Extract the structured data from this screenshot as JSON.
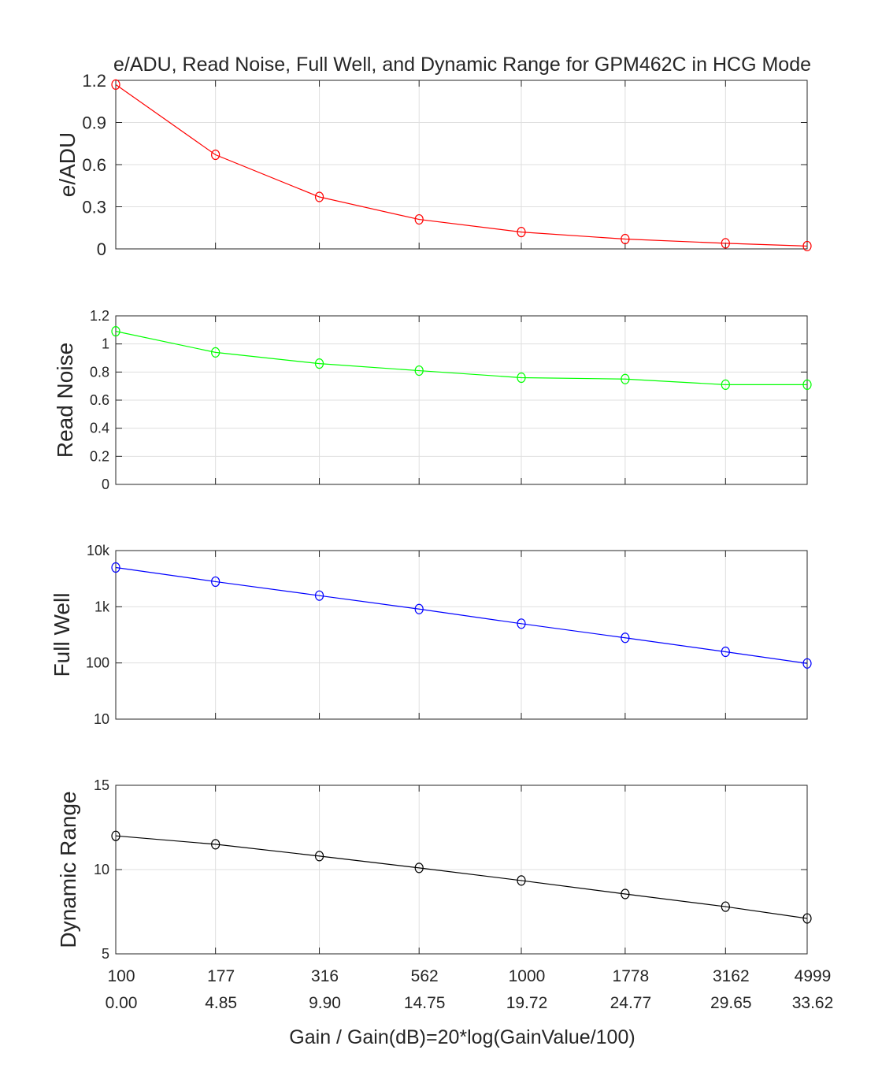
{
  "chart_data": {
    "type": "line",
    "title": "e/ADU, Read Noise, Full Well, and Dynamic Range for GPM462C in HCG Mode",
    "xlabel": "Gain / Gain(dB)=20*log(GainValue/100)",
    "x_gain_labels": [
      "100",
      "177",
      "316",
      "562",
      "1000",
      "1778",
      "3162",
      "4999"
    ],
    "x_db_labels": [
      "0.00",
      "4.85",
      "9.90",
      "14.75",
      "19.72",
      "24.77",
      "29.65",
      "33.62"
    ],
    "x_db": [
      0,
      4.85,
      9.9,
      14.75,
      19.72,
      24.77,
      29.65,
      33.62
    ],
    "grid": true,
    "panels": [
      {
        "ylabel": "e/ADU",
        "scale": "linear",
        "ylim": [
          0,
          1.2
        ],
        "yticks": [
          0,
          0.3,
          0.6,
          0.9,
          1.2
        ],
        "ytick_labels": [
          "0",
          "0.3",
          "0.6",
          "0.9",
          "1.2"
        ],
        "color": "#ff0000",
        "values": [
          1.17,
          0.67,
          0.37,
          0.21,
          0.12,
          0.07,
          0.04,
          0.02
        ]
      },
      {
        "ylabel": "Read Noise",
        "scale": "linear",
        "ylim": [
          0,
          1.2
        ],
        "yticks": [
          0,
          0.2,
          0.4,
          0.6,
          0.8,
          1,
          1.2
        ],
        "ytick_labels": [
          "0",
          "0.2",
          "0.4",
          "0.6",
          "0.8",
          "1",
          "1.2"
        ],
        "color": "#00ff00",
        "values": [
          1.09,
          0.94,
          0.86,
          0.81,
          0.76,
          0.75,
          0.71,
          0.71
        ]
      },
      {
        "ylabel": "Full Well",
        "scale": "log",
        "ylim": [
          10,
          10000
        ],
        "yticks": [
          10,
          100,
          1000,
          10000
        ],
        "ytick_labels": [
          "10",
          "100",
          "1k",
          "10k"
        ],
        "color": "#0000ff",
        "values": [
          5000,
          2800,
          1580,
          910,
          500,
          280,
          158,
          98
        ]
      },
      {
        "ylabel": "Dynamic Range",
        "scale": "linear",
        "ylim": [
          5,
          15
        ],
        "yticks": [
          5,
          10,
          15
        ],
        "ytick_labels": [
          "5",
          "10",
          "15"
        ],
        "color": "#000000",
        "values": [
          12.0,
          11.5,
          10.8,
          10.1,
          9.35,
          8.55,
          7.8,
          7.1
        ]
      }
    ]
  }
}
